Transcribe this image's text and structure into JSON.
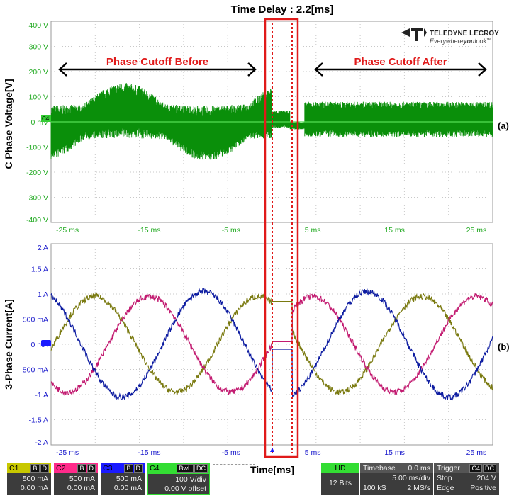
{
  "header": {
    "delay_label": "Time Delay : 2.2[ms]"
  },
  "brand": {
    "name": "TELEDYNE LECROY",
    "slogan_pre": "Everywhere",
    "slogan_bold": "you",
    "slogan_post": "look",
    "trademark": "™"
  },
  "annotations": {
    "before_label": "Phase Cutoff Before",
    "after_label": "Phase Cutoff After",
    "panel_a": "(a)",
    "panel_b": "(b)",
    "accent": "#e01a1a"
  },
  "chart_data": [
    {
      "type": "line",
      "ylabel": "C Phase Voltage[V]",
      "xlabel": "",
      "x_ticks": [
        "-25 ms",
        "-15 ms",
        "-5 ms",
        "5 ms",
        "15 ms",
        "25 ms"
      ],
      "y_ticks": [
        "400 V",
        "300 V",
        "200 V",
        "100 V",
        "0 mV",
        "-100 V",
        "-200 V",
        "-300 V",
        "-400 V"
      ],
      "xlim": [
        -27,
        27
      ],
      "ylim": [
        -400,
        400
      ],
      "grid": true,
      "channel_marker": "C4",
      "series": [
        {
          "values_desc": "noisy PWM voltage",
          "color": "#0a8f0a",
          "x": [
            -27,
            -22,
            -17,
            -12,
            -7,
            -2,
            0,
            2.2,
            5,
            10,
            15,
            20,
            25,
            27
          ],
          "y": [
            85,
            110,
            15,
            -110,
            -15,
            100,
            20,
            -10,
            0,
            0,
            0,
            0,
            0,
            0
          ]
        }
      ]
    },
    {
      "type": "line",
      "ylabel": "3-Phase Current[A]",
      "xlabel": "Time[ms]",
      "x_ticks": [
        "-25 ms",
        "-15 ms",
        "-5 ms",
        "5 ms",
        "15 ms",
        "25 ms"
      ],
      "y_ticks": [
        "2 A",
        "1.5 A",
        "1 A",
        "500 mA",
        "0 mA",
        "-500 mA",
        "-1 A",
        "-1.5 A",
        "-2 A"
      ],
      "xlim": [
        -27,
        27
      ],
      "ylim": [
        -2,
        2
      ],
      "grid": true,
      "series": [
        {
          "name": "C1",
          "color": "#7a7a10",
          "amplitude": 0.95,
          "phase_deg": 120
        },
        {
          "name": "C2",
          "color": "#c21a70",
          "amplitude": 0.95,
          "phase_deg": 0
        },
        {
          "name": "C3",
          "color": "#0b1aa0",
          "amplitude": 1.05,
          "phase_deg": 240
        }
      ],
      "frequency_hz": 50,
      "cutoff_ms": [
        0,
        2.2
      ]
    }
  ],
  "channels": [
    {
      "id": "C1",
      "b": "B",
      "d": "D",
      "line1": "500 mA",
      "line2": "0.00 mA",
      "color": "#c8c800"
    },
    {
      "id": "C2",
      "b": "B",
      "d": "D",
      "line1": "500 mA",
      "line2": "0.00 mA",
      "color": "#ff2a8a"
    },
    {
      "id": "C3",
      "b": "B",
      "d": "D",
      "line1": "500 mA",
      "line2": "0.00 mA",
      "color": "#1a1aff"
    },
    {
      "id": "C4",
      "b": "BwL",
      "d": "DC",
      "line1": "100 V/div",
      "line2": "0.00 V offset",
      "color": "#33dd33"
    }
  ],
  "status": {
    "hd": "HD",
    "bits": "12 Bits",
    "timebase_label": "Timebase",
    "timebase_val": "0.0 ms",
    "div": "5.00 ms/div",
    "samples": "100 kS",
    "rate": "2 MS/s",
    "trigger_label": "Trigger",
    "trig_ch": "C4",
    "trig_dc": "DC",
    "trig_mode": "Stop",
    "trig_level": "204 V",
    "trig_type": "Edge",
    "trig_slope": "Positive"
  }
}
